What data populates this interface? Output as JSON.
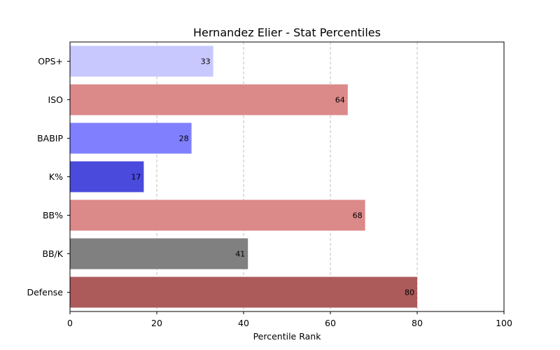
{
  "chart_data": {
    "type": "bar",
    "orientation": "horizontal",
    "title": "Hernandez Elier - Stat Percentiles",
    "xlabel": "Percentile Rank",
    "ylabel": "",
    "xlim": [
      0,
      100
    ],
    "xticks": [
      0,
      20,
      40,
      60,
      80,
      100
    ],
    "grid": "vertical dashed",
    "categories": [
      "OPS+",
      "ISO",
      "BABIP",
      "K%",
      "BB%",
      "BB/K",
      "Defense"
    ],
    "values": [
      33,
      64,
      28,
      17,
      68,
      41,
      80
    ],
    "colors": [
      "#c8c8ff",
      "#dc8989",
      "#8080ff",
      "#4a4adc",
      "#dc8989",
      "#808080",
      "#ac5a5a"
    ]
  }
}
